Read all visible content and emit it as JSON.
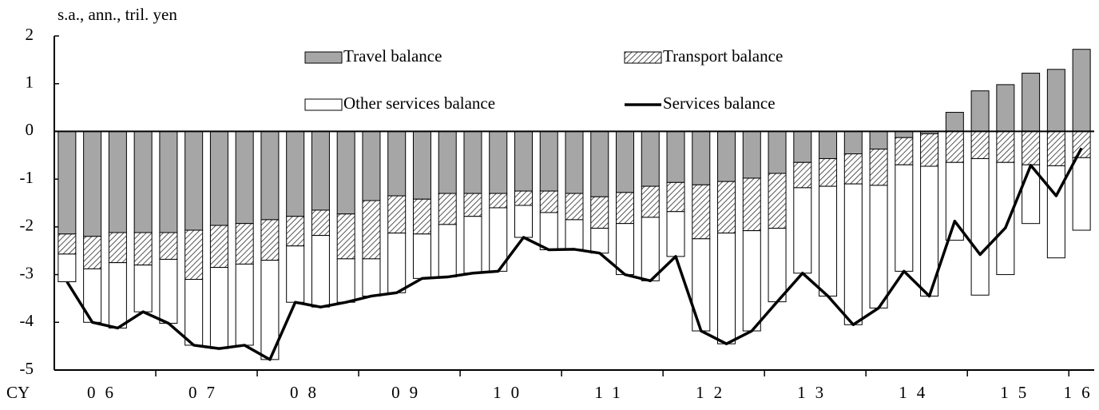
{
  "chart_data": {
    "type": "bar",
    "ylabel": "s.a., ann., tril. yen",
    "xlabel": "CY",
    "categories": [
      "06",
      null,
      null,
      null,
      "07",
      null,
      null,
      null,
      "08",
      null,
      null,
      null,
      "09",
      null,
      null,
      null,
      "10",
      null,
      null,
      null,
      "11",
      null,
      null,
      null,
      "12",
      null,
      null,
      null,
      "13",
      null,
      null,
      null,
      "14",
      null,
      null,
      null,
      "15",
      null,
      null,
      null,
      "16"
    ],
    "ylim": [
      -5,
      2
    ],
    "yticks": [
      -5,
      -4,
      -3,
      -2,
      -1,
      0,
      1,
      2
    ],
    "series": [
      {
        "name": "Travel balance",
        "color": "#a6a6a6",
        "kind": "bar",
        "values": [
          -2.15,
          -2.2,
          -2.12,
          -2.12,
          -2.12,
          -2.07,
          -1.97,
          -1.93,
          -1.85,
          -1.78,
          -1.65,
          -1.73,
          -1.45,
          -1.35,
          -1.42,
          -1.3,
          -1.3,
          -1.3,
          -1.25,
          -1.25,
          -1.3,
          -1.37,
          -1.28,
          -1.15,
          -1.07,
          -1.12,
          -1.05,
          -0.98,
          -0.88,
          -0.65,
          -0.57,
          -0.47,
          -0.37,
          -0.13,
          -0.05,
          0.4,
          0.85,
          0.98,
          1.22,
          1.3,
          1.72
        ]
      },
      {
        "name": "Transport balance",
        "color": "hatch",
        "kind": "bar",
        "values": [
          -0.42,
          -0.68,
          -0.63,
          -0.68,
          -0.56,
          -1.03,
          -0.88,
          -0.85,
          -0.85,
          -0.62,
          -0.53,
          -0.94,
          -1.22,
          -0.78,
          -0.73,
          -0.65,
          -0.48,
          -0.3,
          -0.3,
          -0.45,
          -0.55,
          -0.66,
          -0.65,
          -0.65,
          -0.61,
          -1.13,
          -1.08,
          -1.1,
          -1.15,
          -0.53,
          -0.58,
          -0.63,
          -0.76,
          -0.57,
          -0.68,
          -0.65,
          -0.57,
          -0.65,
          -0.7,
          -0.72,
          -0.55
        ]
      },
      {
        "name": "Other services balance",
        "color": "#ffffff",
        "kind": "bar",
        "values": [
          -0.58,
          -1.12,
          -1.37,
          -0.98,
          -1.34,
          -1.38,
          -1.7,
          -1.7,
          -2.08,
          -1.18,
          -1.5,
          -0.91,
          -0.78,
          -1.25,
          -0.93,
          -1.1,
          -1.19,
          -1.33,
          -0.67,
          -0.78,
          -0.62,
          -0.52,
          -1.07,
          -1.33,
          -0.94,
          -1.93,
          -2.32,
          -2.1,
          -1.54,
          -1.79,
          -2.3,
          -2.95,
          -2.57,
          -2.23,
          -2.72,
          -1.63,
          -2.86,
          -2.35,
          -1.23,
          -1.93,
          -1.52
        ]
      },
      {
        "name": "Services balance",
        "color": "#000000",
        "kind": "line",
        "values": [
          -3.15,
          -4.0,
          -4.12,
          -3.78,
          -4.02,
          -4.48,
          -4.55,
          -4.48,
          -4.78,
          -3.58,
          -3.68,
          -3.58,
          -3.45,
          -3.38,
          -3.08,
          -3.05,
          -2.97,
          -2.93,
          -2.22,
          -2.48,
          -2.47,
          -2.55,
          -3.0,
          -3.13,
          -2.62,
          -4.18,
          -4.45,
          -4.18,
          -3.57,
          -2.97,
          -3.45,
          -4.05,
          -3.7,
          -2.93,
          -3.45,
          -1.88,
          -2.58,
          -2.02,
          -0.71,
          -1.35,
          -0.35
        ]
      }
    ]
  }
}
